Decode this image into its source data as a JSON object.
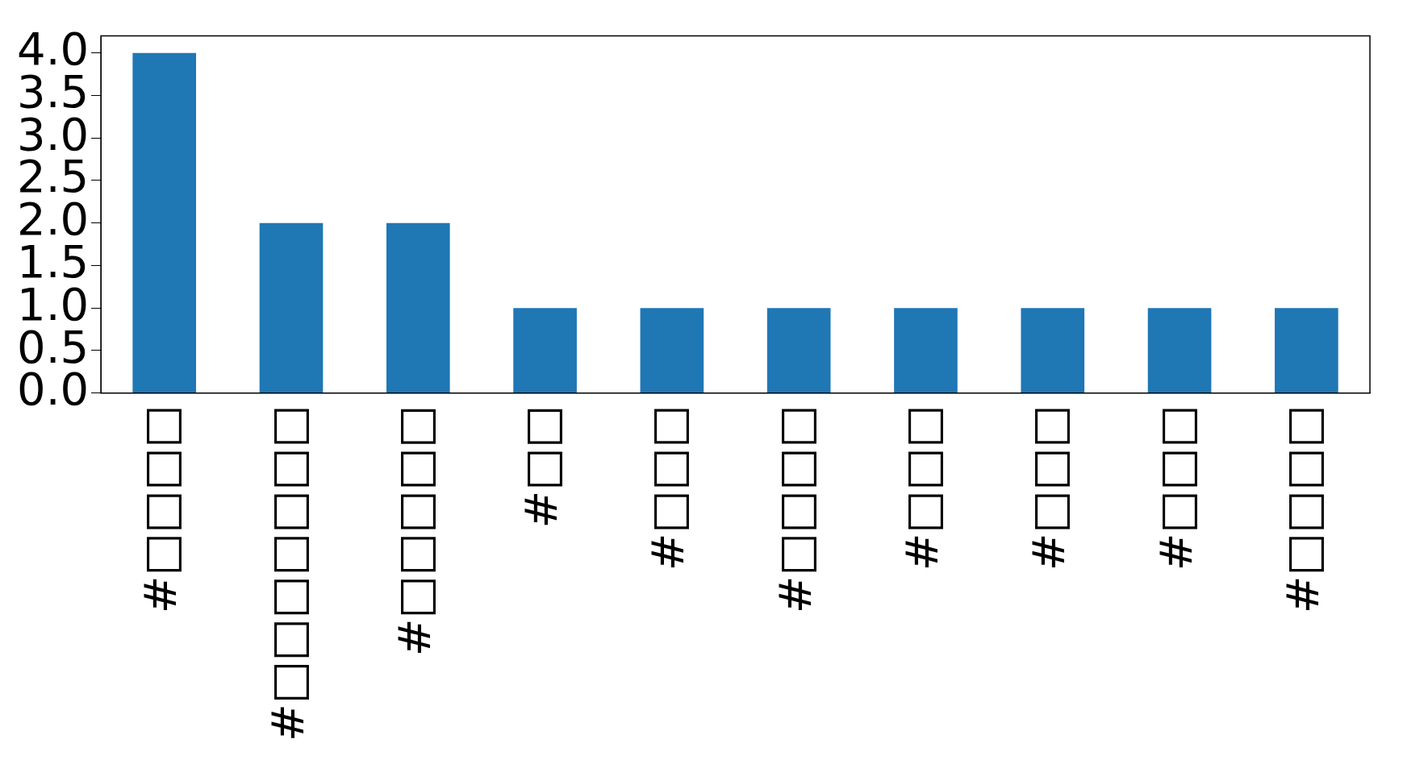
{
  "chart_data": {
    "type": "bar",
    "categories": [
      "#□□□□",
      "#□□□□□□□",
      "#□□□□□",
      "#□□",
      "#□□□",
      "#□□□□",
      "#□□□",
      "#□□□",
      "#□□□",
      "#□□□□"
    ],
    "values": [
      4,
      2,
      2,
      1,
      1,
      1,
      1,
      1,
      1,
      1
    ],
    "color": "#1f77b4",
    "ylim": [
      0,
      4.2
    ],
    "yticks": [
      {
        "value": 0,
        "label": "0.0"
      },
      {
        "value": 0.5,
        "label": "0.5"
      },
      {
        "value": 1,
        "label": "1.0"
      },
      {
        "value": 1.5,
        "label": "1.5"
      },
      {
        "value": 2,
        "label": "2.0"
      },
      {
        "value": 2.5,
        "label": "2.5"
      },
      {
        "value": 3,
        "label": "3.0"
      },
      {
        "value": 3.5,
        "label": "3.5"
      },
      {
        "value": 4,
        "label": "4.0"
      }
    ],
    "grid": false,
    "legend": false
  }
}
